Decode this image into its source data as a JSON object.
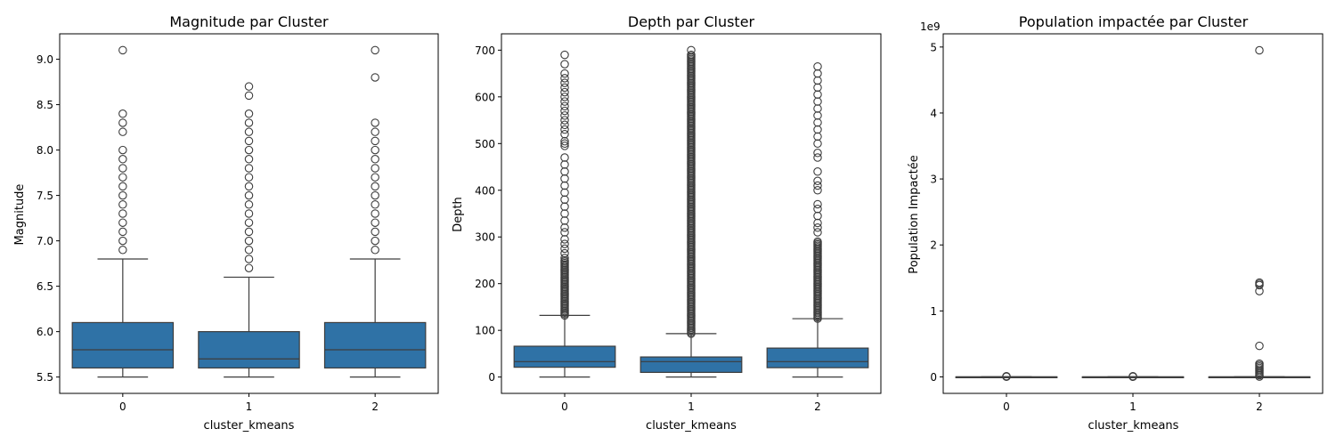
{
  "colors": {
    "box_fill": "#2f72a6",
    "box_edge": "#3d3d3d",
    "axis": "#000000",
    "background": "#ffffff"
  },
  "chart_data": [
    {
      "type": "box",
      "title": "Magnitude par Cluster",
      "xlabel": "cluster_kmeans",
      "ylabel": "Magnitude",
      "categories": [
        "0",
        "1",
        "2"
      ],
      "ylim": [
        5.32,
        9.28
      ],
      "yticks": [
        5.5,
        6.0,
        6.5,
        7.0,
        7.5,
        8.0,
        8.5,
        9.0
      ],
      "ytick_labels": [
        "5.5",
        "6.0",
        "6.5",
        "7.0",
        "7.5",
        "8.0",
        "8.5",
        "9.0"
      ],
      "boxes": [
        {
          "category": "0",
          "whisker_low": 5.5,
          "q1": 5.6,
          "median": 5.8,
          "q3": 6.1,
          "whisker_high": 6.8,
          "outliers": [
            6.9,
            7.0,
            7.1,
            7.2,
            7.3,
            7.4,
            7.5,
            7.6,
            7.7,
            7.8,
            7.9,
            8.0,
            8.2,
            8.3,
            8.4,
            9.1
          ]
        },
        {
          "category": "1",
          "whisker_low": 5.5,
          "q1": 5.6,
          "median": 5.7,
          "q3": 6.0,
          "whisker_high": 6.6,
          "outliers": [
            6.7,
            6.8,
            6.9,
            7.0,
            7.1,
            7.2,
            7.3,
            7.4,
            7.5,
            7.6,
            7.7,
            7.8,
            7.9,
            8.0,
            8.1,
            8.2,
            8.3,
            8.4,
            8.6,
            8.7
          ]
        },
        {
          "category": "2",
          "whisker_low": 5.5,
          "q1": 5.6,
          "median": 5.8,
          "q3": 6.1,
          "whisker_high": 6.8,
          "outliers": [
            6.9,
            7.0,
            7.1,
            7.2,
            7.3,
            7.4,
            7.5,
            7.6,
            7.7,
            7.8,
            7.9,
            8.0,
            8.1,
            8.2,
            8.3,
            8.8,
            9.1
          ]
        }
      ]
    },
    {
      "type": "box",
      "title": "Depth par Cluster",
      "xlabel": "cluster_kmeans",
      "ylabel": "Depth",
      "categories": [
        "0",
        "1",
        "2"
      ],
      "ylim": [
        -35,
        735
      ],
      "yticks": [
        0,
        100,
        200,
        300,
        400,
        500,
        600,
        700
      ],
      "ytick_labels": [
        "0",
        "100",
        "200",
        "300",
        "400",
        "500",
        "600",
        "700"
      ],
      "boxes": [
        {
          "category": "0",
          "whisker_low": 0,
          "q1": 21,
          "median": 33,
          "q3": 66,
          "whisker_high": 132,
          "outliers_dense_range": [
            132,
            250
          ],
          "outliers": [
            255,
            265,
            275,
            285,
            295,
            310,
            320,
            335,
            350,
            365,
            380,
            395,
            410,
            425,
            440,
            455,
            470,
            495,
            500,
            505,
            520,
            530,
            540,
            550,
            560,
            570,
            580,
            590,
            600,
            610,
            620,
            630,
            640,
            650,
            670,
            690
          ]
        },
        {
          "category": "1",
          "whisker_low": 0,
          "q1": 10,
          "median": 33,
          "q3": 43,
          "whisker_high": 93,
          "outliers_dense_range": [
            93,
            690
          ],
          "outliers": [
            700
          ]
        },
        {
          "category": "2",
          "whisker_low": 0,
          "q1": 20,
          "median": 33,
          "q3": 62,
          "whisker_high": 125,
          "outliers_dense_range": [
            125,
            290
          ],
          "outliers": [
            310,
            320,
            330,
            345,
            360,
            370,
            400,
            410,
            420,
            440,
            470,
            480,
            500,
            515,
            530,
            545,
            560,
            575,
            590,
            605,
            620,
            635,
            650,
            665
          ]
        }
      ]
    },
    {
      "type": "box",
      "title": "Population impactée par Cluster",
      "xlabel": "cluster_kmeans",
      "ylabel": "Population Impactée",
      "y_offset_label": "1e9",
      "categories": [
        "0",
        "1",
        "2"
      ],
      "ylim": [
        -0.25,
        5.2
      ],
      "yticks": [
        0,
        1,
        2,
        3,
        4,
        5
      ],
      "ytick_labels": [
        "0",
        "1",
        "2",
        "3",
        "4",
        "5"
      ],
      "boxes": [
        {
          "category": "0",
          "whisker_low": 0,
          "q1": 0,
          "median": 0,
          "q3": 0.001,
          "whisker_high": 0.002,
          "outliers": [
            0.003,
            0.006,
            0.01
          ]
        },
        {
          "category": "1",
          "whisker_low": 0,
          "q1": 0,
          "median": 0,
          "q3": 0.001,
          "whisker_high": 0.002,
          "outliers": [
            0.003,
            0.006,
            0.01
          ]
        },
        {
          "category": "2",
          "whisker_low": 0,
          "q1": 0,
          "median": 0,
          "q3": 0.001,
          "whisker_high": 0.002,
          "outliers_dense_range": [
            0.005,
            0.2
          ],
          "outliers": [
            1.3,
            1.39,
            1.41,
            1.43,
            0.47,
            4.95
          ]
        }
      ]
    }
  ]
}
